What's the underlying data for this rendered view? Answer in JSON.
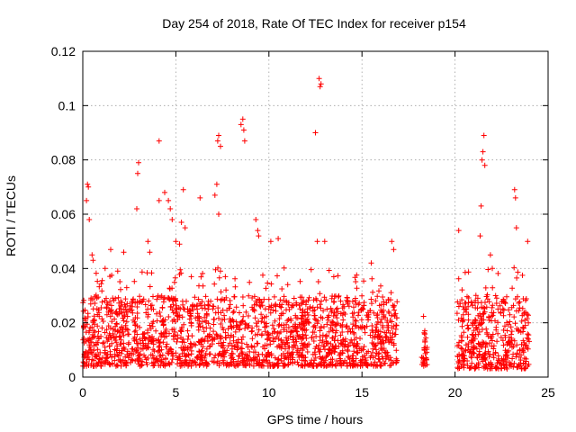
{
  "chart_data": {
    "type": "scatter",
    "title": "Day 254 of 2018, Rate Of TEC Index for receiver p154",
    "xlabel": "GPS time / hours",
    "ylabel": "ROTI / TECUs",
    "xlim": [
      0,
      25
    ],
    "ylim": [
      0,
      0.12
    ],
    "x_ticks": [
      0,
      5,
      10,
      15,
      20,
      25
    ],
    "y_ticks": [
      0,
      0.02,
      0.04,
      0.06,
      0.08,
      0.1,
      0.12
    ],
    "x_tick_labels": [
      "0",
      "5",
      "10",
      "15",
      "20",
      "25"
    ],
    "y_tick_labels": [
      "0",
      "0.02",
      "0.04",
      "0.06",
      "0.08",
      "0.1",
      "0.12"
    ],
    "grid": true,
    "marker": "+",
    "color": "#ff0000",
    "series": [
      {
        "name": "ROTI",
        "segments": [
          {
            "x_start": 0.0,
            "x_end": 16.9,
            "typical_min": 0.004,
            "typical_max": 0.03
          },
          {
            "x_start": 18.2,
            "x_end": 18.5,
            "typical_min": 0.004,
            "typical_max": 0.018
          },
          {
            "x_start": 20.1,
            "x_end": 24.0,
            "typical_min": 0.003,
            "typical_max": 0.03
          }
        ],
        "outliers": [
          {
            "x": 0.2,
            "y": 0.065
          },
          {
            "x": 0.25,
            "y": 0.071
          },
          {
            "x": 0.3,
            "y": 0.07
          },
          {
            "x": 0.35,
            "y": 0.058
          },
          {
            "x": 0.5,
            "y": 0.045
          },
          {
            "x": 0.55,
            "y": 0.043
          },
          {
            "x": 1.2,
            "y": 0.04
          },
          {
            "x": 1.5,
            "y": 0.047
          },
          {
            "x": 2.2,
            "y": 0.046
          },
          {
            "x": 2.9,
            "y": 0.062
          },
          {
            "x": 2.95,
            "y": 0.075
          },
          {
            "x": 3.0,
            "y": 0.079
          },
          {
            "x": 3.5,
            "y": 0.05
          },
          {
            "x": 3.6,
            "y": 0.046
          },
          {
            "x": 4.1,
            "y": 0.087
          },
          {
            "x": 4.1,
            "y": 0.065
          },
          {
            "x": 4.4,
            "y": 0.068
          },
          {
            "x": 4.6,
            "y": 0.065
          },
          {
            "x": 4.7,
            "y": 0.062
          },
          {
            "x": 4.8,
            "y": 0.058
          },
          {
            "x": 5.0,
            "y": 0.05
          },
          {
            "x": 5.2,
            "y": 0.049
          },
          {
            "x": 5.3,
            "y": 0.057
          },
          {
            "x": 5.4,
            "y": 0.069
          },
          {
            "x": 5.5,
            "y": 0.055
          },
          {
            "x": 6.3,
            "y": 0.066
          },
          {
            "x": 7.1,
            "y": 0.067
          },
          {
            "x": 7.2,
            "y": 0.071
          },
          {
            "x": 7.25,
            "y": 0.087
          },
          {
            "x": 7.3,
            "y": 0.089
          },
          {
            "x": 7.3,
            "y": 0.06
          },
          {
            "x": 7.4,
            "y": 0.085
          },
          {
            "x": 8.5,
            "y": 0.093
          },
          {
            "x": 8.6,
            "y": 0.095
          },
          {
            "x": 8.65,
            "y": 0.091
          },
          {
            "x": 8.7,
            "y": 0.087
          },
          {
            "x": 9.3,
            "y": 0.058
          },
          {
            "x": 9.4,
            "y": 0.054
          },
          {
            "x": 9.45,
            "y": 0.052
          },
          {
            "x": 10.1,
            "y": 0.05
          },
          {
            "x": 10.5,
            "y": 0.051
          },
          {
            "x": 12.5,
            "y": 0.09
          },
          {
            "x": 12.7,
            "y": 0.11
          },
          {
            "x": 12.75,
            "y": 0.107
          },
          {
            "x": 12.8,
            "y": 0.108
          },
          {
            "x": 12.6,
            "y": 0.05
          },
          {
            "x": 13.0,
            "y": 0.05
          },
          {
            "x": 15.5,
            "y": 0.042
          },
          {
            "x": 16.6,
            "y": 0.05
          },
          {
            "x": 16.7,
            "y": 0.047
          },
          {
            "x": 20.2,
            "y": 0.054
          },
          {
            "x": 21.35,
            "y": 0.052
          },
          {
            "x": 21.4,
            "y": 0.063
          },
          {
            "x": 21.45,
            "y": 0.08
          },
          {
            "x": 21.5,
            "y": 0.083
          },
          {
            "x": 21.55,
            "y": 0.089
          },
          {
            "x": 21.6,
            "y": 0.078
          },
          {
            "x": 21.9,
            "y": 0.045
          },
          {
            "x": 22.0,
            "y": 0.04
          },
          {
            "x": 23.2,
            "y": 0.069
          },
          {
            "x": 23.25,
            "y": 0.066
          },
          {
            "x": 23.3,
            "y": 0.055
          },
          {
            "x": 23.9,
            "y": 0.05
          }
        ]
      }
    ]
  }
}
